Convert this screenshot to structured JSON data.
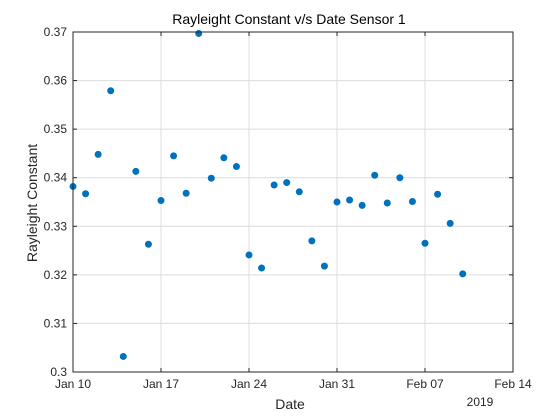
{
  "chart_data": {
    "type": "scatter",
    "title": "Rayleight Constant v/s Date Sensor 1",
    "xlabel": "Date",
    "ylabel": "Rayleight Constant",
    "x_year_label": "2019",
    "x_axis_type": "date",
    "xlim": [
      "2019-01-10",
      "2019-02-14"
    ],
    "ylim": [
      0.3,
      0.37
    ],
    "x_ticks": [
      {
        "date": "2019-01-10",
        "label": "Jan 10"
      },
      {
        "date": "2019-01-17",
        "label": "Jan 17"
      },
      {
        "date": "2019-01-24",
        "label": "Jan 24"
      },
      {
        "date": "2019-01-31",
        "label": "Jan 31"
      },
      {
        "date": "2019-02-07",
        "label": "Feb 07"
      },
      {
        "date": "2019-02-14",
        "label": "Feb 14"
      }
    ],
    "y_ticks": [
      0.3,
      0.31,
      0.32,
      0.33,
      0.34,
      0.35,
      0.36,
      0.37
    ],
    "y_tick_labels": [
      "0.3",
      "0.31",
      "0.32",
      "0.33",
      "0.34",
      "0.35",
      "0.36",
      "0.37"
    ],
    "grid": true,
    "marker_color": "#0072bd",
    "series": [
      {
        "points": [
          {
            "x": "2019-01-10",
            "y": 0.3382
          },
          {
            "x": "2019-01-11",
            "y": 0.3367
          },
          {
            "x": "2019-01-12",
            "y": 0.3448
          },
          {
            "x": "2019-01-13",
            "y": 0.3579
          },
          {
            "x": "2019-01-14",
            "y": 0.3032
          },
          {
            "x": "2019-01-15",
            "y": 0.3413
          },
          {
            "x": "2019-01-16",
            "y": 0.3263
          },
          {
            "x": "2019-01-17",
            "y": 0.3353
          },
          {
            "x": "2019-01-18",
            "y": 0.3445
          },
          {
            "x": "2019-01-19",
            "y": 0.3368
          },
          {
            "x": "2019-01-20",
            "y": 0.3697
          },
          {
            "x": "2019-01-21",
            "y": 0.3399
          },
          {
            "x": "2019-01-22",
            "y": 0.3441
          },
          {
            "x": "2019-01-23",
            "y": 0.3423
          },
          {
            "x": "2019-01-24",
            "y": 0.3241
          },
          {
            "x": "2019-01-25",
            "y": 0.3214
          },
          {
            "x": "2019-01-26",
            "y": 0.3385
          },
          {
            "x": "2019-01-27",
            "y": 0.339
          },
          {
            "x": "2019-01-28",
            "y": 0.3371
          },
          {
            "x": "2019-01-29",
            "y": 0.327
          },
          {
            "x": "2019-01-30",
            "y": 0.3218
          },
          {
            "x": "2019-01-31",
            "y": 0.335
          },
          {
            "x": "2019-02-01",
            "y": 0.3354
          },
          {
            "x": "2019-02-02",
            "y": 0.3343
          },
          {
            "x": "2019-02-03",
            "y": 0.3405
          },
          {
            "x": "2019-02-04",
            "y": 0.3348
          },
          {
            "x": "2019-02-05",
            "y": 0.34
          },
          {
            "x": "2019-02-06",
            "y": 0.3351
          },
          {
            "x": "2019-02-07",
            "y": 0.3265
          },
          {
            "x": "2019-02-08",
            "y": 0.3366
          },
          {
            "x": "2019-02-09",
            "y": 0.3306
          },
          {
            "x": "2019-02-10",
            "y": 0.3202
          }
        ]
      }
    ]
  }
}
